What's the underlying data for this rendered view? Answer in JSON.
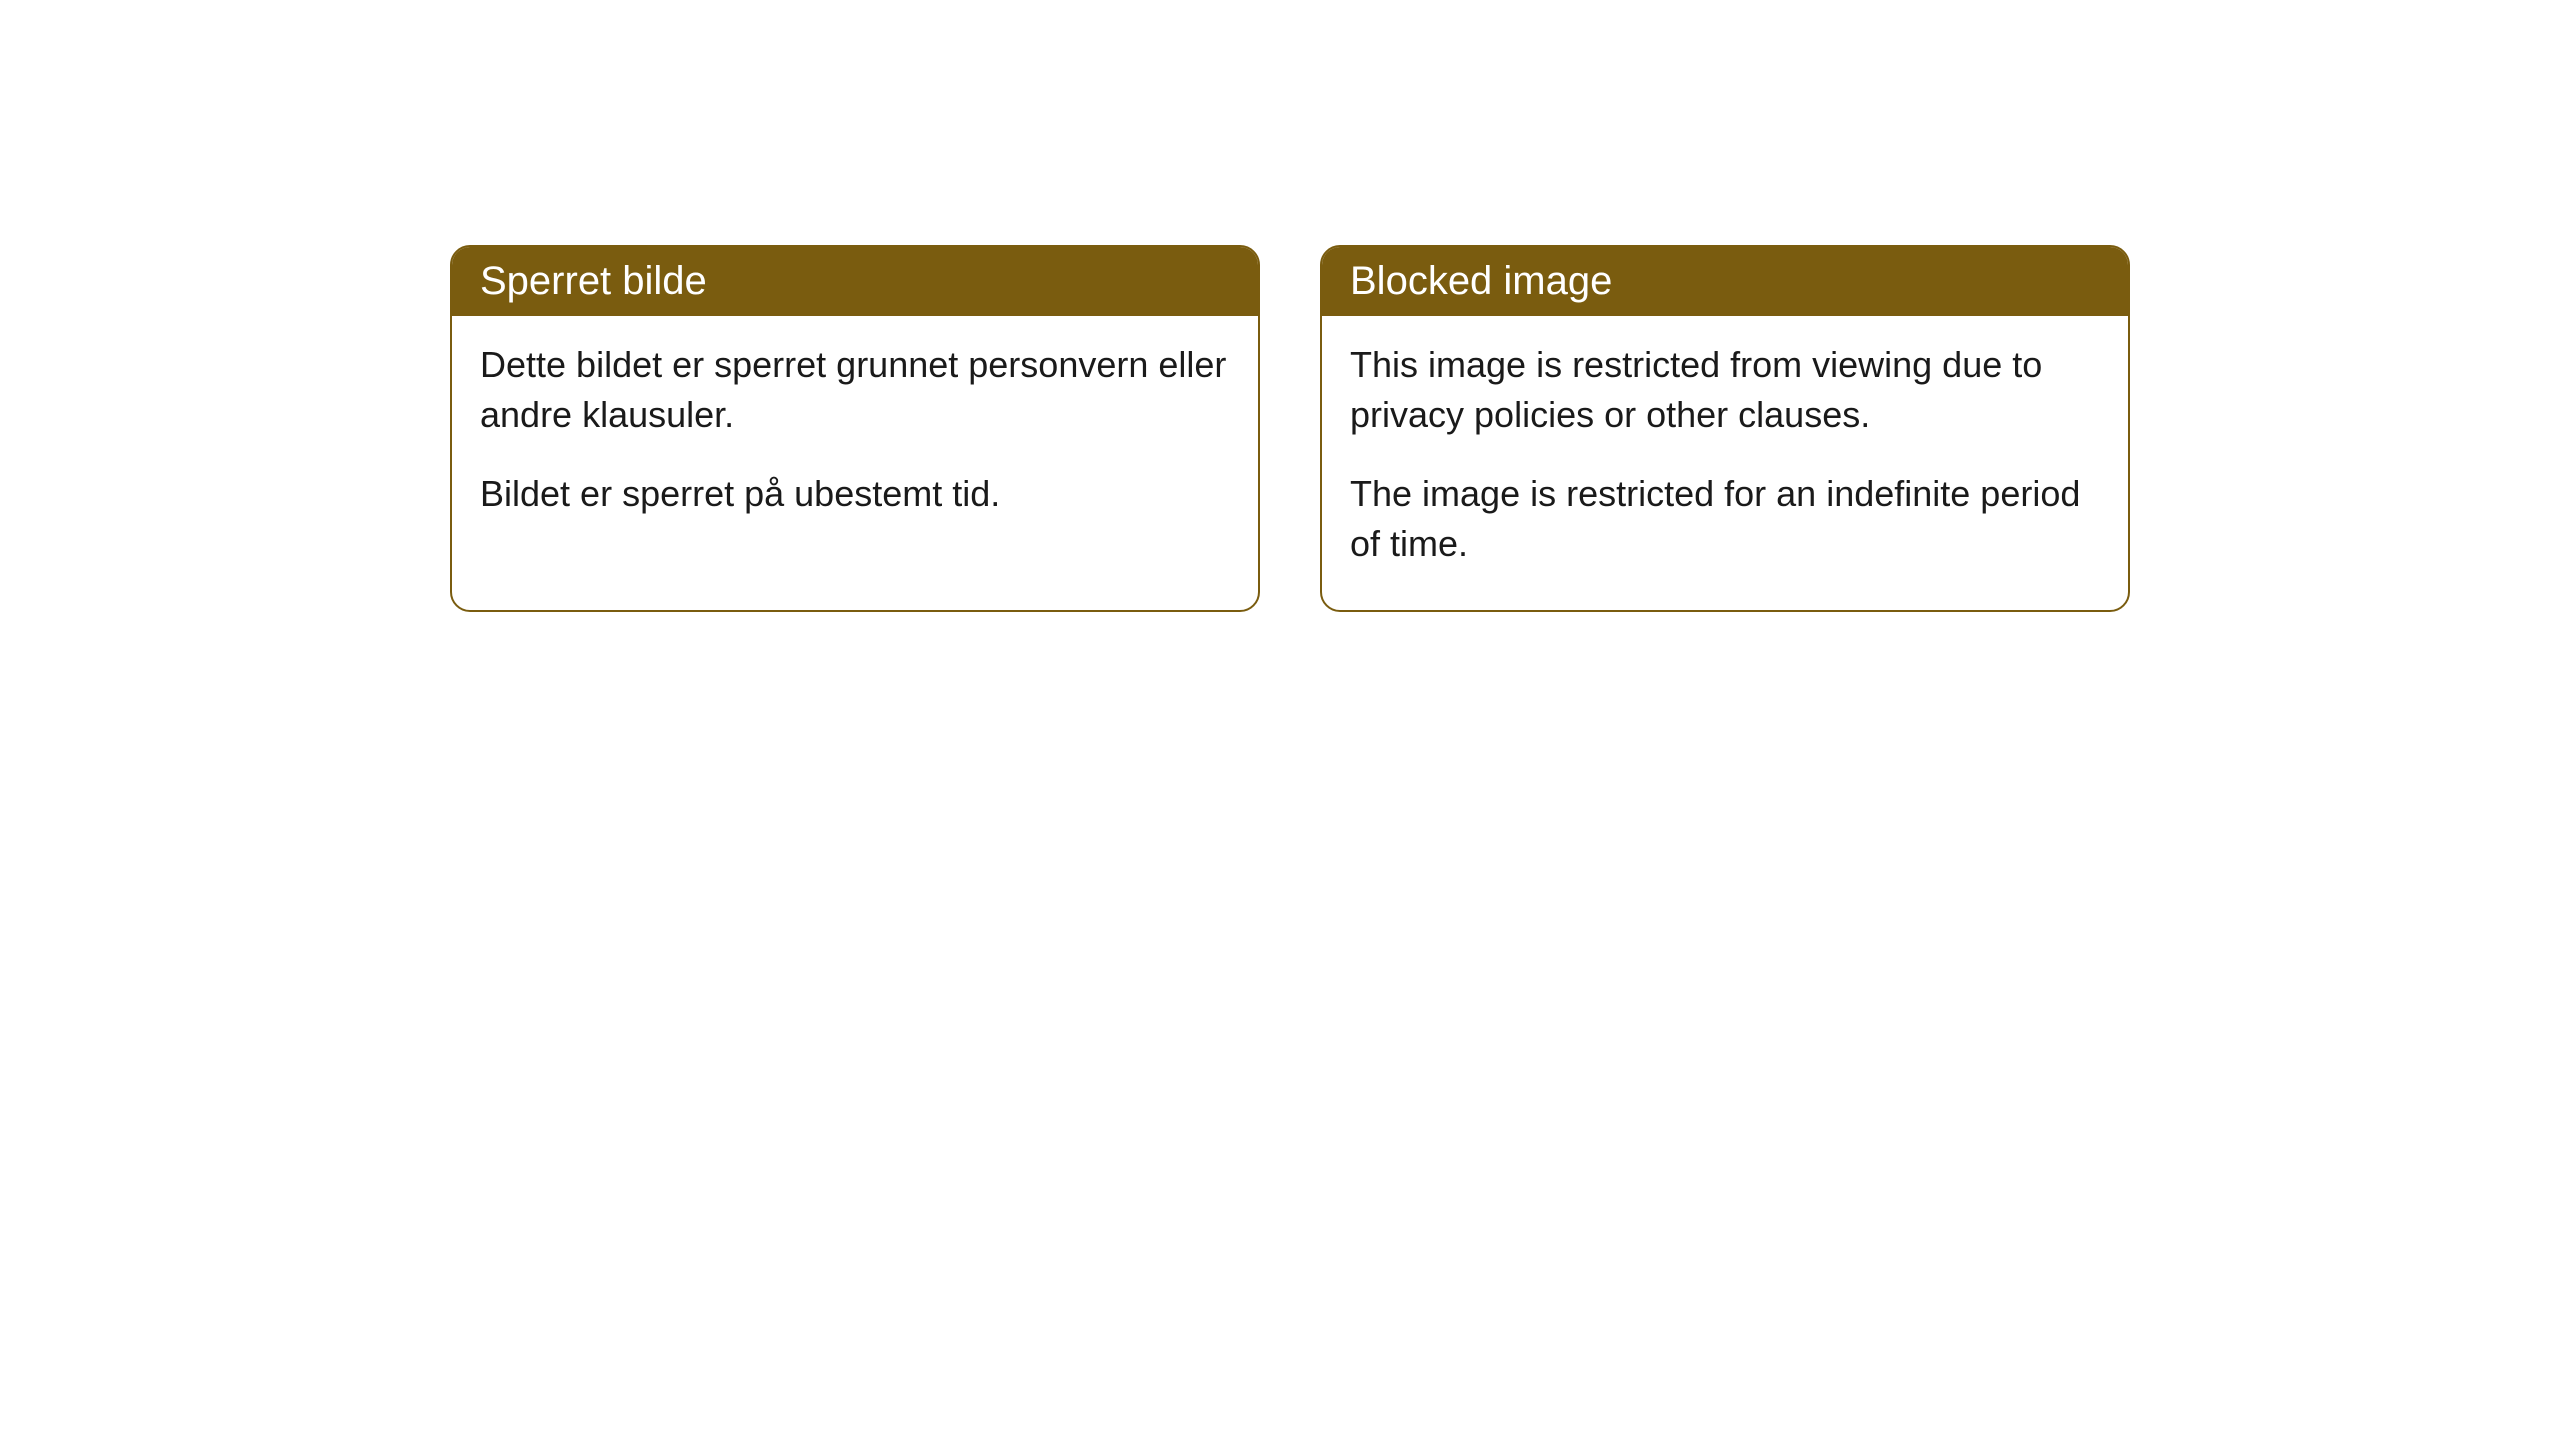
{
  "cards": [
    {
      "title": "Sperret bilde",
      "paragraph1": "Dette bildet er sperret grunnet personvern eller andre klausuler.",
      "paragraph2": "Bildet er sperret på ubestemt tid."
    },
    {
      "title": "Blocked image",
      "paragraph1": "This image is restricted from viewing due to privacy policies or other clauses.",
      "paragraph2": "The image is restricted for an indefinite period of time."
    }
  ],
  "styling": {
    "header_bg_color": "#7a5c0f",
    "header_text_color": "#ffffff",
    "body_text_color": "#1a1a1a",
    "border_color": "#7a5c0f",
    "background_color": "#ffffff",
    "border_radius": "20px",
    "header_fontsize": 40,
    "body_fontsize": 36
  }
}
